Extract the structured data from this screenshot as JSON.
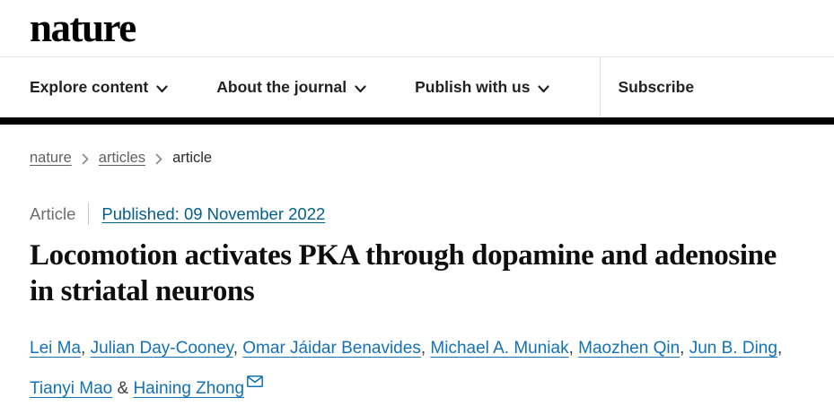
{
  "header": {
    "logo_text": "nature"
  },
  "nav": {
    "items": [
      {
        "label": "Explore content",
        "chevron": true
      },
      {
        "label": "About the journal",
        "chevron": true
      },
      {
        "label": "Publish with us",
        "chevron": true
      }
    ],
    "subscribe_label": "Subscribe"
  },
  "breadcrumb": {
    "items": [
      {
        "label": "nature",
        "link": true
      },
      {
        "label": "articles",
        "link": true
      },
      {
        "label": "article",
        "link": false
      }
    ]
  },
  "meta": {
    "article_type": "Article",
    "published": "Published: 09 November 2022"
  },
  "article": {
    "title": "Locomotion activates PKA through dopamine and adenosine in striatal neurons"
  },
  "authors": {
    "names": [
      "Lei Ma",
      "Julian Day-Cooney",
      "Omar Jáidar Benavides",
      "Michael A. Muniak",
      "Maozhen Qin",
      "Jun B. Ding",
      "Tianyi Mao",
      "Haining Zhong"
    ],
    "separator": ", ",
    "conjunction": " & ",
    "corresponding_author": "Haining Zhong"
  },
  "colors": {
    "author_link": "#1272b6",
    "published_link": "#025e8d",
    "nav_text": "#222222",
    "black_bar": "#000000",
    "breadcrumb_gray": "#616161"
  }
}
